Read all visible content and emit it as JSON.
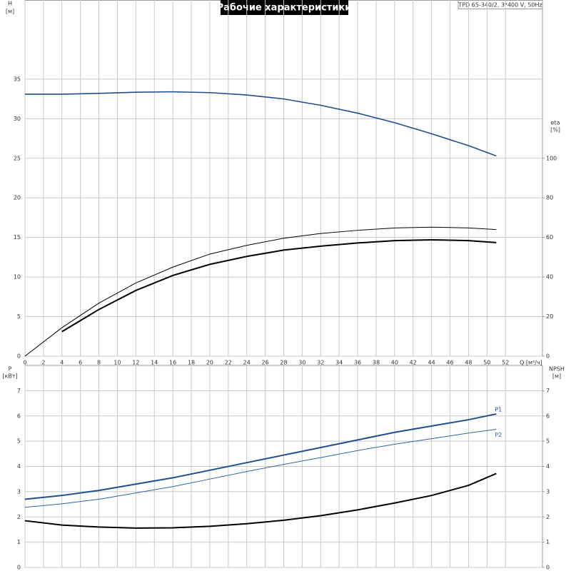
{
  "title": "Рабочие характеристики",
  "model": "TPD 65-340/2, 3*400 V, 50Hz",
  "chart_data": [
    {
      "type": "line",
      "x_label": "Q [м³/ч]",
      "y_label": "H",
      "y_unit": "[м]",
      "y2_label": "eta",
      "y2_unit": "[%]",
      "x": [
        0,
        4,
        8,
        12,
        16,
        20,
        24,
        28,
        32,
        36,
        40,
        44,
        48,
        51
      ],
      "xlim": [
        0,
        56
      ],
      "xticks": [
        0,
        2,
        4,
        6,
        8,
        10,
        12,
        14,
        16,
        18,
        20,
        22,
        24,
        26,
        28,
        30,
        32,
        34,
        36,
        38,
        40,
        42,
        44,
        46,
        48,
        50,
        52
      ],
      "ylim": [
        0,
        45
      ],
      "yticks": [
        0,
        5,
        10,
        15,
        20,
        25,
        30,
        35
      ],
      "y2lim": [
        0,
        180
      ],
      "y2ticks": [
        0,
        20,
        40,
        60,
        80,
        100
      ],
      "grid": true,
      "series": [
        {
          "color": "#1f4e8c",
          "linewidth": 1.6,
          "values": [
            33.1,
            33.1,
            33.2,
            33.35,
            33.4,
            33.3,
            33.0,
            32.5,
            31.7,
            30.7,
            29.5,
            28.1,
            26.6,
            25.3
          ]
        },
        {
          "color": "#000000",
          "linewidth": 1,
          "axis": "y2",
          "values": [
            0,
            14.4,
            26.8,
            37,
            45,
            51.6,
            56,
            59.6,
            62,
            63.6,
            64.8,
            65.2,
            64.8,
            64
          ]
        },
        {
          "color": "#000000",
          "linewidth": 2,
          "axis": "y2",
          "values": [
            null,
            12.4,
            23.6,
            33.2,
            40.8,
            46.4,
            50.4,
            53.6,
            55.6,
            57.2,
            58.4,
            58.8,
            58.4,
            57.4
          ]
        }
      ]
    },
    {
      "type": "line",
      "y_label": "P",
      "y_unit": "[кВт]",
      "y2_label": "NPSH",
      "y2_unit": "[м]",
      "x": [
        0,
        4,
        8,
        12,
        16,
        20,
        24,
        28,
        32,
        36,
        40,
        44,
        48,
        51
      ],
      "xlim": [
        0,
        56
      ],
      "ylim": [
        0,
        8
      ],
      "yticks": [
        0,
        1,
        2,
        3,
        4,
        5,
        6,
        7
      ],
      "y2lim": [
        0,
        8
      ],
      "y2ticks": [
        0,
        1,
        2,
        3,
        4,
        5,
        6,
        7
      ],
      "grid": true,
      "series": [
        {
          "name": "P1",
          "color": "#1f4e8c",
          "linewidth": 2,
          "values": [
            2.7,
            2.85,
            3.05,
            3.3,
            3.55,
            3.85,
            4.15,
            4.45,
            4.75,
            5.05,
            5.35,
            5.6,
            5.85,
            6.08
          ]
        },
        {
          "name": "P2",
          "color": "#2e64a8",
          "linewidth": 1,
          "values": [
            2.38,
            2.52,
            2.7,
            2.95,
            3.2,
            3.5,
            3.8,
            4.08,
            4.35,
            4.63,
            4.88,
            5.1,
            5.32,
            5.47
          ]
        },
        {
          "color": "#000000",
          "linewidth": 2,
          "axis": "y2",
          "values": [
            1.85,
            1.68,
            1.6,
            1.56,
            1.57,
            1.63,
            1.73,
            1.87,
            2.05,
            2.28,
            2.55,
            2.85,
            3.25,
            3.72
          ]
        }
      ]
    }
  ]
}
